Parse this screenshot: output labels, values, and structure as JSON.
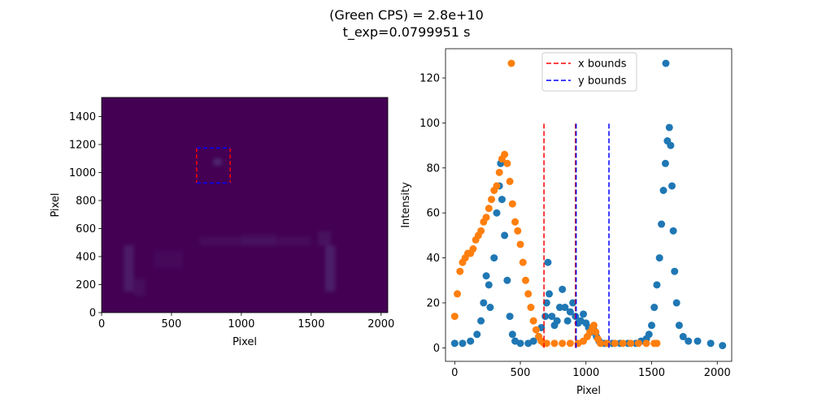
{
  "figure": {
    "title_line1": "(Green CPS) = 2.8e+10",
    "title_line2": "t_exp=0.0799951 s"
  },
  "chart_data": [
    {
      "type": "heatmap",
      "xlabel": "Pixel",
      "ylabel": "Pixel",
      "xlim": [
        0,
        2048
      ],
      "ylim": [
        0,
        1536
      ],
      "xticks": [
        0,
        500,
        1000,
        1500,
        2000
      ],
      "yticks": [
        0,
        200,
        400,
        600,
        800,
        1000,
        1200,
        1400
      ],
      "colormap": "viridis",
      "background_color": "#440154",
      "roi_box": {
        "x_bounds": [
          680,
          920
        ],
        "y_bounds": [
          925,
          1175
        ],
        "x_color": "#ff0000",
        "y_color": "#0000ff"
      }
    },
    {
      "type": "scatter",
      "xlabel": "Pixel",
      "ylabel": "Intensity",
      "xlim": [
        -70,
        2110
      ],
      "ylim": [
        -6,
        133
      ],
      "xticks": [
        0,
        500,
        1000,
        1500,
        2000
      ],
      "yticks": [
        0,
        20,
        40,
        60,
        80,
        100,
        120
      ],
      "series": [
        {
          "color": "#1f77b4",
          "points": [
            [
              0,
              2
            ],
            [
              60,
              2
            ],
            [
              120,
              3
            ],
            [
              170,
              6
            ],
            [
              200,
              12
            ],
            [
              220,
              20
            ],
            [
              240,
              32
            ],
            [
              260,
              28
            ],
            [
              270,
              18
            ],
            [
              300,
              40
            ],
            [
              320,
              60
            ],
            [
              340,
              72
            ],
            [
              350,
              82
            ],
            [
              360,
              66
            ],
            [
              380,
              50
            ],
            [
              400,
              30
            ],
            [
              420,
              14
            ],
            [
              440,
              6
            ],
            [
              460,
              3
            ],
            [
              500,
              2
            ],
            [
              560,
              2
            ],
            [
              600,
              3
            ],
            [
              640,
              5
            ],
            [
              660,
              9
            ],
            [
              690,
              14
            ],
            [
              700,
              20
            ],
            [
              710,
              38
            ],
            [
              720,
              24
            ],
            [
              740,
              14
            ],
            [
              760,
              10
            ],
            [
              780,
              12
            ],
            [
              800,
              18
            ],
            [
              820,
              26
            ],
            [
              840,
              18
            ],
            [
              860,
              12
            ],
            [
              880,
              16
            ],
            [
              900,
              20
            ],
            [
              920,
              14
            ],
            [
              940,
              11
            ],
            [
              960,
              12
            ],
            [
              980,
              15
            ],
            [
              1000,
              11
            ],
            [
              1020,
              9
            ],
            [
              1040,
              7
            ],
            [
              1060,
              8
            ],
            [
              1080,
              5
            ],
            [
              1100,
              3
            ],
            [
              1140,
              2
            ],
            [
              1200,
              2
            ],
            [
              1260,
              2
            ],
            [
              1320,
              2
            ],
            [
              1380,
              2
            ],
            [
              1420,
              3
            ],
            [
              1460,
              4
            ],
            [
              1480,
              6
            ],
            [
              1500,
              10
            ],
            [
              1520,
              18
            ],
            [
              1540,
              28
            ],
            [
              1560,
              40
            ],
            [
              1575,
              55
            ],
            [
              1590,
              70
            ],
            [
              1605,
              82
            ],
            [
              1620,
              92
            ],
            [
              1635,
              98
            ],
            [
              1645,
              90
            ],
            [
              1655,
              72
            ],
            [
              1665,
              52
            ],
            [
              1675,
              34
            ],
            [
              1690,
              20
            ],
            [
              1710,
              10
            ],
            [
              1740,
              5
            ],
            [
              1780,
              3
            ],
            [
              1850,
              3
            ],
            [
              1950,
              2
            ],
            [
              2040,
              1
            ]
          ]
        },
        {
          "color": "#ff7f0e",
          "points": [
            [
              0,
              14
            ],
            [
              20,
              24
            ],
            [
              40,
              34
            ],
            [
              60,
              38
            ],
            [
              80,
              40
            ],
            [
              100,
              42
            ],
            [
              120,
              42
            ],
            [
              140,
              44
            ],
            [
              160,
              48
            ],
            [
              180,
              50
            ],
            [
              200,
              52
            ],
            [
              220,
              56
            ],
            [
              240,
              58
            ],
            [
              260,
              62
            ],
            [
              280,
              66
            ],
            [
              300,
              70
            ],
            [
              320,
              72
            ],
            [
              340,
              78
            ],
            [
              360,
              84
            ],
            [
              380,
              86
            ],
            [
              400,
              82
            ],
            [
              420,
              74
            ],
            [
              440,
              64
            ],
            [
              460,
              56
            ],
            [
              480,
              52
            ],
            [
              500,
              46
            ],
            [
              520,
              38
            ],
            [
              540,
              30
            ],
            [
              560,
              24
            ],
            [
              580,
              18
            ],
            [
              600,
              12
            ],
            [
              620,
              8
            ],
            [
              640,
              5
            ],
            [
              660,
              3
            ],
            [
              680,
              2
            ],
            [
              700,
              2
            ],
            [
              760,
              2
            ],
            [
              820,
              2
            ],
            [
              880,
              2
            ],
            [
              940,
              2
            ],
            [
              980,
              3
            ],
            [
              1010,
              5
            ],
            [
              1030,
              7
            ],
            [
              1050,
              9
            ],
            [
              1060,
              10
            ],
            [
              1075,
              7
            ],
            [
              1090,
              4
            ],
            [
              1110,
              2
            ],
            [
              1160,
              2
            ],
            [
              1220,
              2
            ],
            [
              1280,
              2
            ],
            [
              1340,
              2
            ],
            [
              1400,
              2
            ],
            [
              1460,
              2
            ],
            [
              1520,
              2
            ],
            [
              1540,
              2
            ]
          ]
        }
      ],
      "vlines": [
        {
          "x": 680,
          "color": "#ff0000",
          "ymax": 100
        },
        {
          "x": 920,
          "color": "#ff0000",
          "ymax": 100
        },
        {
          "x": 925,
          "color": "#0000ff",
          "ymax": 100
        },
        {
          "x": 1175,
          "color": "#0000ff",
          "ymax": 100
        }
      ],
      "legend": {
        "placement": "upper-center",
        "entries": [
          {
            "label": "",
            "kind": "marker",
            "color": "#ff7f0e"
          },
          {
            "label": "x bounds",
            "kind": "dashed",
            "color": "#ff0000"
          },
          {
            "label": "y bounds",
            "kind": "dashed",
            "color": "#0000ff"
          },
          {
            "label": "",
            "kind": "marker",
            "color": "#1f77b4"
          }
        ]
      }
    }
  ]
}
